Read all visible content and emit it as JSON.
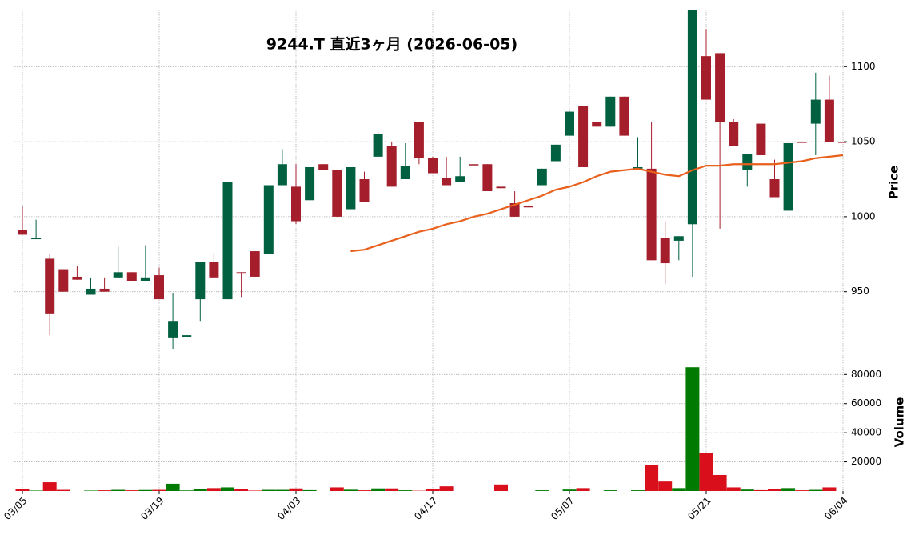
{
  "chart_data": [
    {
      "type": "candlestick",
      "title": "9244.T 直近3ヶ月 (2026-06-05)",
      "ylabel": "Price",
      "categories": [
        "03/05",
        null,
        null,
        null,
        null,
        null,
        null,
        null,
        null,
        null,
        "03/19",
        null,
        null,
        null,
        null,
        null,
        null,
        null,
        null,
        null,
        "04/03",
        null,
        null,
        null,
        null,
        null,
        null,
        null,
        null,
        null,
        "04/17",
        null,
        null,
        null,
        null,
        null,
        null,
        null,
        null,
        null,
        "05/07",
        null,
        null,
        null,
        null,
        null,
        null,
        null,
        null,
        null,
        "05/21",
        null,
        null,
        null,
        null,
        null,
        null,
        null,
        null,
        null,
        "06/04"
      ],
      "open": [
        991,
        985,
        972,
        965,
        960,
        948,
        952,
        959,
        963,
        957,
        961,
        919,
        920,
        945,
        970,
        945,
        963,
        977,
        975,
        1021,
        1020,
        1011,
        1035,
        1031,
        1005,
        1025,
        1040,
        1047,
        1025,
        1063,
        1039,
        1026,
        1023,
        1035,
        1035,
        1020,
        1009,
        1007,
        1021,
        1037,
        1054,
        1074,
        1063,
        1060,
        1080,
        1032,
        1032,
        986,
        984,
        995,
        1107,
        1109,
        1063,
        1031,
        1062,
        1025,
        1004,
        1050,
        1062,
        1078,
        1050
      ],
      "high": [
        1007,
        998,
        975,
        965,
        967,
        959,
        959,
        980,
        963,
        981,
        966,
        949,
        921,
        970,
        976,
        1023,
        963,
        977,
        1021,
        1045,
        1035,
        1033,
        1035,
        1031,
        1033,
        1030,
        1057,
        1050,
        1049,
        1063,
        1040,
        1040,
        1040,
        1035,
        1035,
        1020,
        1017,
        1007,
        1032,
        1048,
        1070,
        1074,
        1063,
        1080,
        1080,
        1053,
        1063,
        997,
        987,
        1140,
        1125,
        1109,
        1065,
        1042,
        1062,
        1038,
        1049,
        1050,
        1096,
        1094,
        1050
      ],
      "low": [
        988,
        985,
        921,
        950,
        958,
        948,
        950,
        959,
        957,
        957,
        945,
        911,
        920,
        930,
        959,
        945,
        946,
        960,
        975,
        1021,
        995,
        1011,
        1031,
        1000,
        1005,
        1010,
        1040,
        1020,
        1025,
        1035,
        1029,
        1021,
        1023,
        1035,
        1017,
        1019,
        1000,
        1007,
        1021,
        1037,
        1054,
        1033,
        1060,
        1060,
        1054,
        1032,
        971,
        955,
        971,
        960,
        1078,
        992,
        1047,
        1020,
        1041,
        1013,
        1004,
        1050,
        1041,
        1050,
        1050
      ],
      "close": [
        988,
        986,
        935,
        950,
        958,
        952,
        950,
        963,
        957,
        959,
        945,
        930,
        921,
        970,
        959,
        1023,
        962,
        960,
        1021,
        1035,
        997,
        1033,
        1031,
        1000,
        1033,
        1010,
        1055,
        1020,
        1034,
        1039,
        1029,
        1021,
        1027,
        1035,
        1017,
        1019,
        1000,
        1007,
        1032,
        1048,
        1070,
        1033,
        1060,
        1080,
        1054,
        1033,
        971,
        969,
        987,
        1140,
        1078,
        1063,
        1047,
        1042,
        1041,
        1013,
        1049,
        1050,
        1078,
        1050,
        1050
      ],
      "up_color": "#006040",
      "down_color": "#a51e2c",
      "moving_average": {
        "color": "#e8601c",
        "values": [
          null,
          null,
          null,
          null,
          null,
          null,
          null,
          null,
          null,
          null,
          null,
          null,
          null,
          null,
          null,
          null,
          null,
          null,
          null,
          null,
          null,
          null,
          null,
          null,
          977,
          978,
          981,
          984,
          987,
          990,
          992,
          995,
          997,
          1000,
          1002,
          1005,
          1008,
          1011,
          1014,
          1018,
          1020,
          1023,
          1027,
          1030,
          1031,
          1032,
          1030,
          1028,
          1027,
          1031,
          1034,
          1034,
          1035,
          1035,
          1035,
          1035,
          1036,
          1037,
          1039,
          1040,
          1041
        ]
      },
      "ylim": [
        912,
        1138
      ],
      "yticks": [
        950,
        1000,
        1050,
        1100
      ],
      "grid": true
    },
    {
      "type": "bar",
      "ylabel": "Volume",
      "values": [
        1500,
        300,
        6000,
        800,
        0,
        300,
        500,
        800,
        500,
        700,
        800,
        5000,
        400,
        1500,
        2000,
        2500,
        1200,
        300,
        800,
        800,
        1800,
        600,
        0,
        2500,
        900,
        500,
        1800,
        1800,
        500,
        200,
        1200,
        3200,
        0,
        0,
        0,
        4500,
        0,
        0,
        500,
        0,
        1000,
        2000,
        0,
        500,
        0,
        500,
        18000,
        6500,
        2000,
        85000,
        26000,
        11000,
        2500,
        1000,
        600,
        1500,
        2000,
        500,
        800,
        2500,
        0
      ],
      "up_color": "#007a00",
      "down_color": "#d9101c",
      "ylim": [
        0,
        95000
      ],
      "yticks": [
        20000,
        40000,
        60000,
        80000
      ],
      "grid": true
    }
  ]
}
